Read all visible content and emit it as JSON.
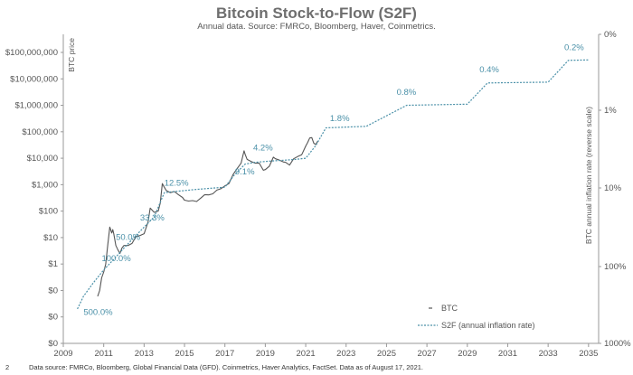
{
  "chart_data": {
    "type": "line",
    "title": "Bitcoin Stock-to-Flow (S2F)",
    "subtitle": "Annual data.  Source: FMRCo, Bloomberg, Haver, Coinmetrics.",
    "ylabel_left": "BTC price",
    "ylabel_right": "BTC annual inflation rate (reverse scale)",
    "page_number": "2",
    "footer": "Data source: FMRCo, Bloomberg, Global Financial Data (GFD). Coinmetrics, Haver Analytics, FactSet.  Data as of August 17, 2021.",
    "x_ticks": [
      "2009",
      "2011",
      "2013",
      "2015",
      "2017",
      "2019",
      "2021",
      "2023",
      "2025",
      "2027",
      "2029",
      "2031",
      "2033",
      "2035"
    ],
    "xlim": [
      2009,
      2035.5
    ],
    "y_left_ticks": [
      "$0",
      "$0",
      "$0",
      "$1",
      "$10",
      "$100",
      "$1,000",
      "$10,000",
      "$100,000",
      "$1,000,000",
      "$10,000,000",
      "$100,000,000"
    ],
    "y_right_ticks": [
      "1000%",
      "100%",
      "10%",
      "1%",
      "0%"
    ],
    "legend": {
      "position": "bottom-right",
      "btc": "BTC",
      "s2f": "S2F (annual inflation rate)"
    },
    "colors": {
      "btc": "#555555",
      "s2f": "#4a90a8",
      "axis": "#999999"
    },
    "series": [
      {
        "name": "BTC",
        "x": [
          2010.7,
          2010.8,
          2010.9,
          2011.0,
          2011.1,
          2011.2,
          2011.3,
          2011.4,
          2011.45,
          2011.5,
          2011.6,
          2011.7,
          2011.8,
          2011.9,
          2012.0,
          2012.2,
          2012.4,
          2012.6,
          2012.8,
          2013.0,
          2013.2,
          2013.3,
          2013.5,
          2013.7,
          2013.8,
          2013.9,
          2014.0,
          2014.1,
          2014.3,
          2014.5,
          2014.7,
          2014.9,
          2015.0,
          2015.2,
          2015.4,
          2015.6,
          2015.8,
          2016.0,
          2016.2,
          2016.4,
          2016.6,
          2016.8,
          2017.0,
          2017.2,
          2017.4,
          2017.6,
          2017.8,
          2017.95,
          2018.0,
          2018.1,
          2018.3,
          2018.5,
          2018.7,
          2018.9,
          2019.0,
          2019.2,
          2019.4,
          2019.5,
          2019.7,
          2019.9,
          2020.0,
          2020.2,
          2020.4,
          2020.6,
          2020.8,
          2021.0,
          2021.1,
          2021.2,
          2021.3,
          2021.4,
          2021.5,
          2021.6
        ],
        "y": [
          0.06,
          0.1,
          0.3,
          0.5,
          1.0,
          5,
          25,
          15,
          20,
          14,
          5,
          3.5,
          2.5,
          4,
          5,
          5,
          6,
          11,
          12,
          14,
          40,
          130,
          90,
          100,
          200,
          1100,
          800,
          600,
          500,
          550,
          420,
          330,
          260,
          240,
          250,
          230,
          310,
          420,
          410,
          450,
          620,
          700,
          900,
          1100,
          2400,
          4000,
          6500,
          19000,
          14000,
          9000,
          7500,
          6500,
          6500,
          3500,
          3700,
          5000,
          11000,
          9500,
          8500,
          7200,
          7000,
          5500,
          9500,
          11500,
          13500,
          29000,
          40000,
          58000,
          60000,
          37000,
          33000,
          45000
        ]
      },
      {
        "name": "S2F (annual inflation rate)",
        "x": [
          2009.7,
          2010.0,
          2010.5,
          2011.0,
          2011.5,
          2012.0,
          2012.5,
          2013.0,
          2013.5,
          2014.0,
          2014.5,
          2015.0,
          2015.5,
          2016.0,
          2016.5,
          2017.0,
          2017.5,
          2018.0,
          2018.5,
          2019.0,
          2019.5,
          2020.0,
          2020.5,
          2021.0,
          2021.5,
          2022.0,
          2024.0,
          2026.0,
          2029.0,
          2030.0,
          2033.0,
          2034.0,
          2035.0
        ],
        "y": [
          0.02,
          0.06,
          0.2,
          0.6,
          1.5,
          4,
          10,
          25,
          60,
          500,
          550,
          600,
          650,
          700,
          750,
          800,
          2500,
          6000,
          7000,
          7500,
          8000,
          8500,
          9000,
          10000,
          30000,
          140000,
          160000,
          1000000,
          1100000,
          7000000,
          7500000,
          50000000,
          52000000
        ]
      }
    ],
    "annotations": [
      {
        "text": "500.0%",
        "x": 2010.0,
        "y": 0.012
      },
      {
        "text": "100.0%",
        "x": 2010.9,
        "y": 1.3
      },
      {
        "text": "50.0%",
        "x": 2011.6,
        "y": 8
      },
      {
        "text": "33.3%",
        "x": 2012.8,
        "y": 45
      },
      {
        "text": "12.5%",
        "x": 2014.0,
        "y": 900
      },
      {
        "text": "9.1%",
        "x": 2017.5,
        "y": 2400
      },
      {
        "text": "4.2%",
        "x": 2018.4,
        "y": 20000
      },
      {
        "text": "1.8%",
        "x": 2022.2,
        "y": 250000
      },
      {
        "text": "0.8%",
        "x": 2025.5,
        "y": 2500000
      },
      {
        "text": "0.4%",
        "x": 2029.6,
        "y": 18000000
      },
      {
        "text": "0.2%",
        "x": 2033.8,
        "y": 120000000
      }
    ]
  }
}
